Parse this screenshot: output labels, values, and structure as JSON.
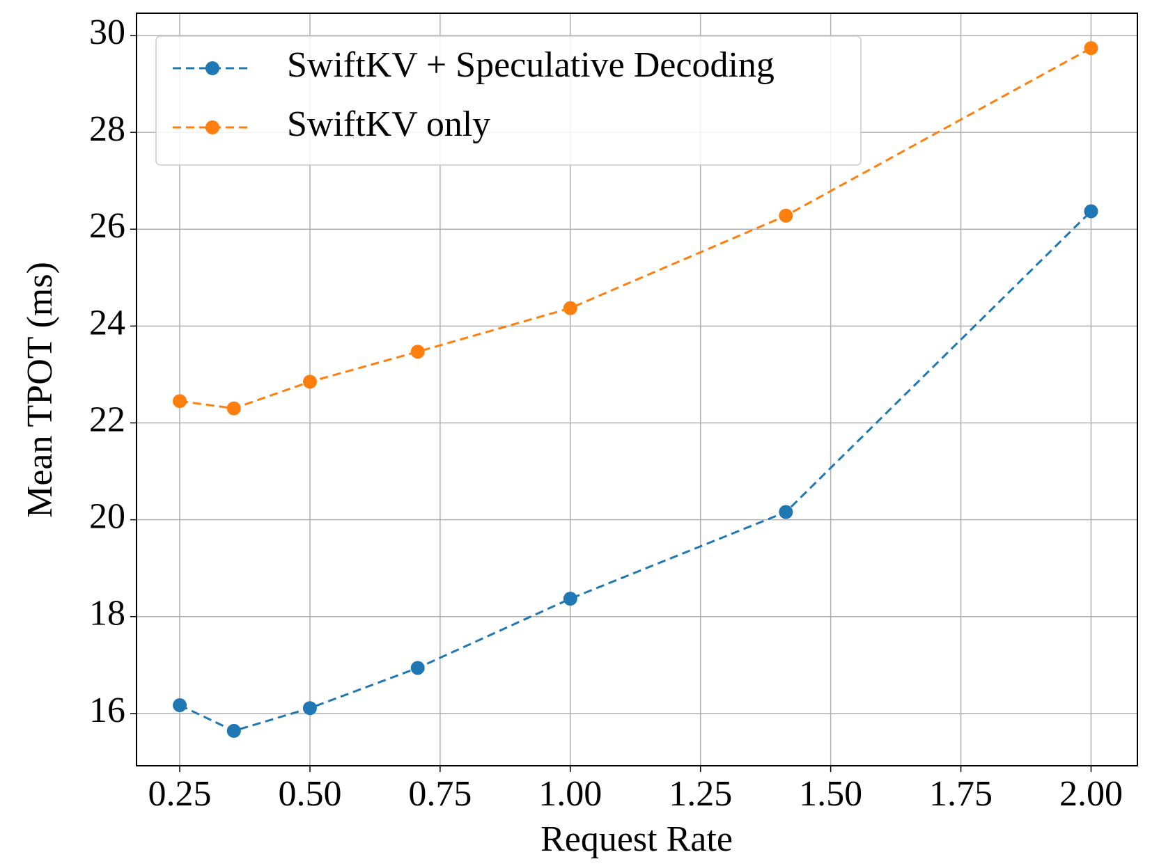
{
  "chart_data": {
    "type": "line",
    "x_label": "Request Rate",
    "y_label": "Mean TPOT (ms)",
    "x": [
      0.25,
      0.354,
      0.5,
      0.707,
      1.0,
      1.414,
      2.0
    ],
    "series": [
      {
        "name": "SwiftKV + Speculative Decoding",
        "color": "#1f77b4",
        "values": [
          16.17,
          15.64,
          16.11,
          16.94,
          18.37,
          20.16,
          26.37
        ]
      },
      {
        "name": "SwiftKV only",
        "color": "#ff7f0e",
        "values": [
          22.45,
          22.3,
          22.85,
          23.47,
          24.37,
          26.28,
          29.74
        ]
      }
    ],
    "xlim": [
      0.167,
      2.089
    ],
    "ylim": [
      14.92,
      30.46
    ],
    "xticks": [
      0.25,
      {
        "value": 0.5,
        "label": "0.50"
      },
      0.75,
      {
        "value": 1.0,
        "label": "1.00"
      },
      1.25,
      {
        "value": 1.5,
        "label": "1.50"
      },
      1.75,
      {
        "value": 2.0,
        "label": "2.00"
      }
    ],
    "yticks": [
      16,
      18,
      20,
      22,
      24,
      26,
      28,
      30
    ],
    "grid": true,
    "legend": "upper left",
    "line_style": "dashed"
  }
}
